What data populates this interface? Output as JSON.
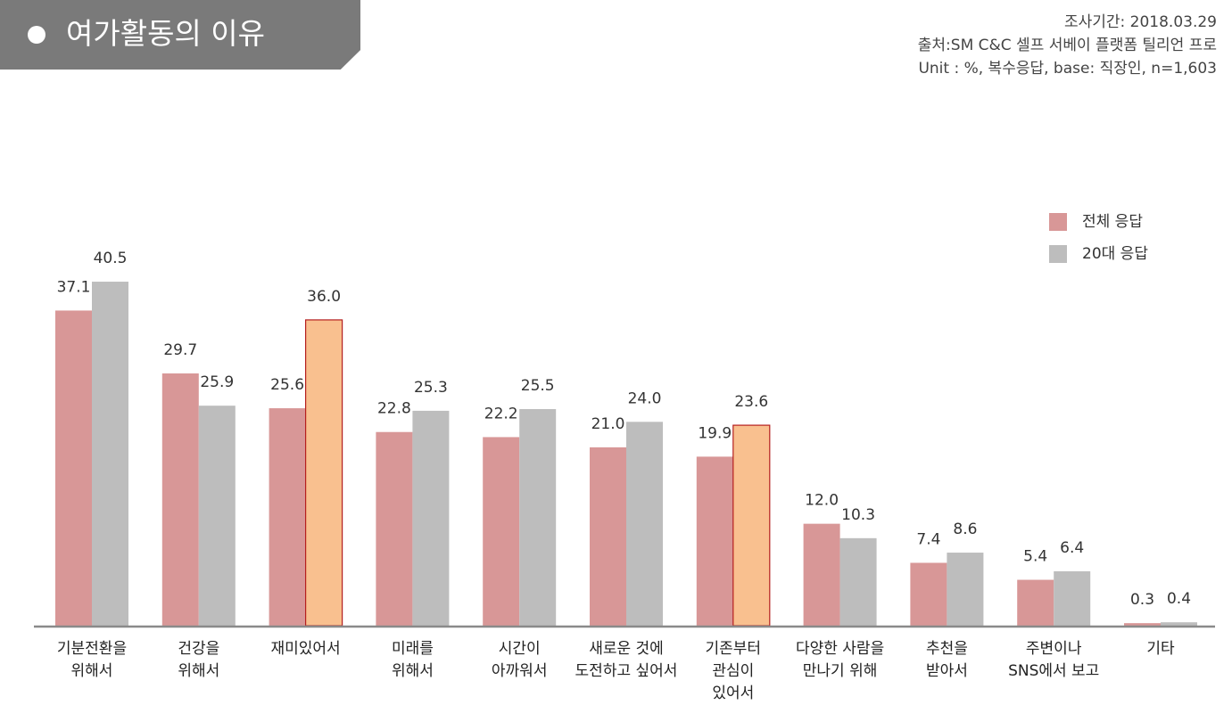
{
  "header": {
    "title": "여가활동의 이유",
    "survey_period": "조사기간: 2018.03.29",
    "source": "출처:SM C&C 셀프 서베이 플랫폼 틸리언 프로",
    "unit_note": "Unit : %, 복수응답, base: 직장인, n=1,603"
  },
  "colors": {
    "series_all": "#d89797",
    "series_20s": "#bdbdbd",
    "highlight": "#f9c08f",
    "highlight_border": "#b51f1f",
    "axis": "#8a8a8a"
  },
  "chart_data": {
    "type": "bar",
    "categories": [
      [
        "기분전환을",
        "위해서"
      ],
      [
        "건강을",
        "위해서"
      ],
      [
        "재미있어서"
      ],
      [
        "미래를",
        "위해서"
      ],
      [
        "시간이",
        "아까워서"
      ],
      [
        "새로운 것에",
        "도전하고 싶어서"
      ],
      [
        "기존부터",
        "관심이",
        "있어서"
      ],
      [
        "다양한 사람을",
        "만나기 위해"
      ],
      [
        "추천을",
        "받아서"
      ],
      [
        "주변이나",
        "SNS에서 보고"
      ],
      [
        "기타"
      ]
    ],
    "series": [
      {
        "name": "전체 응답",
        "values": [
          37.1,
          29.7,
          25.6,
          22.8,
          22.2,
          21.0,
          19.9,
          12.0,
          7.4,
          5.4,
          0.3
        ],
        "labels": [
          "37.1",
          "29.7",
          "25.6",
          "22.8",
          "22.2",
          "21.0",
          "19.9",
          "12.0",
          "7.4",
          "5.4",
          "0.3"
        ]
      },
      {
        "name": "20대 응답",
        "values": [
          40.5,
          25.9,
          36.0,
          25.3,
          25.5,
          24.0,
          23.6,
          10.3,
          8.6,
          6.4,
          0.4
        ],
        "labels": [
          "40.5",
          "25.9",
          "36.0",
          "25.3",
          "25.5",
          "24.0",
          "23.6",
          "10.3",
          "8.6",
          "6.4",
          "0.4"
        ],
        "highlighted": [
          2,
          6
        ]
      }
    ],
    "ylim": [
      0,
      45
    ],
    "grid": false,
    "legend_position": "top-right"
  }
}
